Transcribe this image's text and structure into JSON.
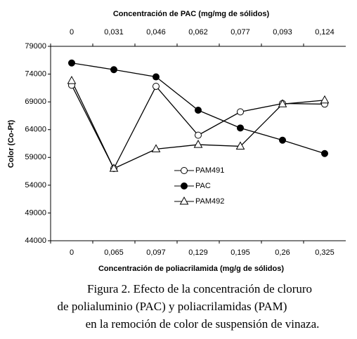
{
  "chart_data": {
    "type": "line",
    "top_axis_title": "Concentración de PAC (mg/mg de sólidos)",
    "top_categories": [
      "0",
      "0,031",
      "0,046",
      "0,062",
      "0,077",
      "0,093",
      "0,124"
    ],
    "x_label": "Concentración de poliacrilamida (mg/g de sólidos)",
    "y_label": "Color (Co-Pt)",
    "categories": [
      "0",
      "0,065",
      "0,097",
      "0,129",
      "0,195",
      "0,26",
      "0,325"
    ],
    "series": [
      {
        "name": "PAM491",
        "color": "#000000",
        "marker": "circle-open",
        "values": [
          72000,
          57000,
          71800,
          63000,
          67200,
          68700,
          68600
        ]
      },
      {
        "name": "PAC",
        "color": "#000000",
        "marker": "circle-filled",
        "values": [
          76000,
          74800,
          73500,
          67500,
          64300,
          62100,
          59700
        ]
      },
      {
        "name": "PAM492",
        "color": "#000000",
        "marker": "triangle-open",
        "values": [
          72800,
          57000,
          60500,
          61300,
          61000,
          68600,
          69300
        ]
      }
    ],
    "ylim": [
      44000,
      79000
    ],
    "yticks": [
      44000,
      49000,
      54000,
      59000,
      64000,
      69000,
      74000,
      79000
    ],
    "caption": [
      "Figura 2. Efecto de la concentración de cloruro",
      "de polialuminio (PAC) y poliacrilamidas (PAM)",
      "en la remoción de color de suspensión de vinaza."
    ]
  }
}
